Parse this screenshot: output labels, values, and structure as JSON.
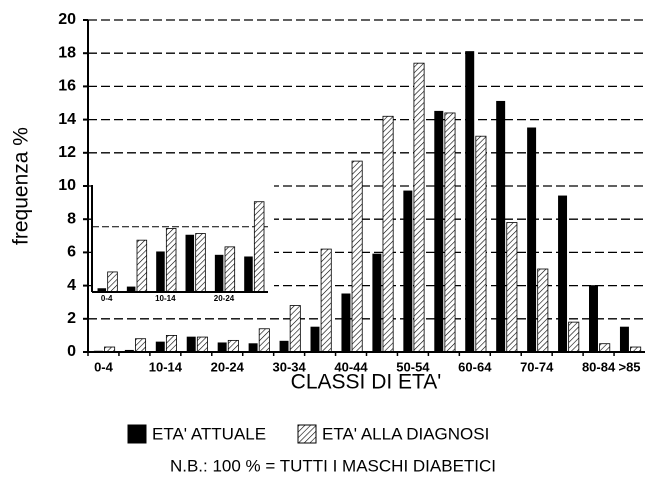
{
  "chart_data": [
    {
      "type": "bar",
      "x_label": "CLASSI DI ETA'",
      "y_label": "frequenza %",
      "footnote": "N.B.: 100 % = TUTTI I MASCHI DIABETICI",
      "categories": [
        "0-4",
        null,
        "10-14",
        null,
        "20-24",
        null,
        "30-34",
        null,
        "40-44",
        null,
        "50-54",
        null,
        "60-64",
        null,
        "70-74",
        null,
        "80-84",
        ">85"
      ],
      "series": [
        {
          "name": "ETA' ATTUALE",
          "color": "#000000",
          "hatch": false,
          "values": [
            0.05,
            0.1,
            0.6,
            0.9,
            0.55,
            0.5,
            0.65,
            1.5,
            3.5,
            5.9,
            9.7,
            14.5,
            18.1,
            15.1,
            13.5,
            9.4,
            4.0,
            1.5
          ]
        },
        {
          "name": "ETA' ALLA DIAGNOSI",
          "color": "#000000",
          "hatch": true,
          "values": [
            0.3,
            0.8,
            1.0,
            0.9,
            0.7,
            1.4,
            2.8,
            6.2,
            11.5,
            14.2,
            17.4,
            14.4,
            13.0,
            7.8,
            5.0,
            1.8,
            0.5,
            0.3
          ]
        }
      ],
      "ylim": [
        0,
        20
      ],
      "yticks": [
        0,
        2,
        4,
        6,
        8,
        10,
        12,
        14,
        16,
        18,
        20
      ],
      "grid": true
    },
    {
      "type": "bar",
      "categories": [
        "0-4",
        null,
        "10-14",
        null,
        "20-24",
        null
      ],
      "series": [
        {
          "color": "#000000",
          "hatch": false,
          "values": [
            3.8,
            3.9,
            6.0,
            7.0,
            5.8,
            5.7
          ]
        },
        {
          "color": "#000000",
          "hatch": true,
          "values": [
            4.8,
            6.7,
            7.4,
            7.1,
            6.3,
            9.0
          ]
        }
      ],
      "ylim": [
        3.6,
        10
      ],
      "grid_lines": [
        7.5
      ]
    }
  ]
}
